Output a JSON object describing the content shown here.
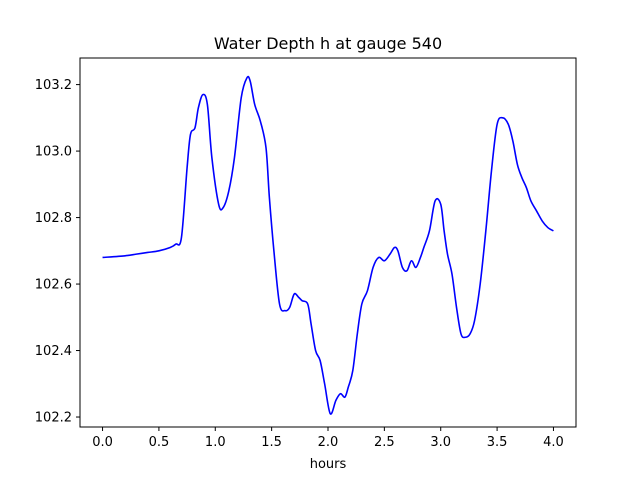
{
  "chart_data": {
    "type": "line",
    "title": "Water Depth h at gauge 540",
    "xlabel": "hours",
    "ylabel": "",
    "xlim": [
      -0.2,
      4.2
    ],
    "ylim": [
      102.17,
      103.28
    ],
    "grid": false,
    "line_color": "#0000ff",
    "x_ticks": [
      0.0,
      0.5,
      1.0,
      1.5,
      2.0,
      2.5,
      3.0,
      3.5,
      4.0
    ],
    "x_tick_labels": [
      "0.0",
      "0.5",
      "1.0",
      "1.5",
      "2.0",
      "2.5",
      "3.0",
      "3.5",
      "4.0"
    ],
    "y_ticks": [
      102.2,
      102.4,
      102.6,
      102.8,
      103.0,
      103.2
    ],
    "y_tick_labels": [
      "102.2",
      "102.4",
      "102.6",
      "102.8",
      "103.0",
      "103.2"
    ],
    "series": [
      {
        "x": [
          0.0,
          0.2,
          0.3,
          0.4,
          0.5,
          0.6,
          0.65,
          0.7,
          0.75,
          0.78,
          0.82,
          0.85,
          0.89,
          0.93,
          0.97,
          1.03,
          1.07,
          1.12,
          1.17,
          1.23,
          1.28,
          1.31,
          1.35,
          1.4,
          1.45,
          1.48,
          1.52,
          1.57,
          1.62,
          1.66,
          1.7,
          1.74,
          1.77,
          1.82,
          1.85,
          1.89,
          1.93,
          1.97,
          2.02,
          2.07,
          2.11,
          2.15,
          2.18,
          2.22,
          2.26,
          2.3,
          2.35,
          2.4,
          2.45,
          2.5,
          2.55,
          2.59,
          2.62,
          2.66,
          2.7,
          2.74,
          2.78,
          2.82,
          2.85,
          2.9,
          2.95,
          3.0,
          3.03,
          3.06,
          3.1,
          3.14,
          3.18,
          3.22,
          3.26,
          3.3,
          3.35,
          3.4,
          3.45,
          3.5,
          3.55,
          3.6,
          3.64,
          3.68,
          3.72,
          3.76,
          3.8,
          3.85,
          3.9,
          3.95,
          4.0
        ],
        "y": [
          102.68,
          102.685,
          102.69,
          102.695,
          102.7,
          102.71,
          102.72,
          102.74,
          102.95,
          103.05,
          103.07,
          103.13,
          103.17,
          103.14,
          102.98,
          102.84,
          102.83,
          102.88,
          102.98,
          103.16,
          103.22,
          103.21,
          103.14,
          103.09,
          103.01,
          102.86,
          102.7,
          102.54,
          102.52,
          102.53,
          102.57,
          102.56,
          102.55,
          102.54,
          102.48,
          102.4,
          102.37,
          102.3,
          102.21,
          102.25,
          102.27,
          102.26,
          102.29,
          102.34,
          102.45,
          102.54,
          102.58,
          102.65,
          102.68,
          102.67,
          102.69,
          102.71,
          102.7,
          102.65,
          102.64,
          102.67,
          102.65,
          102.68,
          102.71,
          102.76,
          102.85,
          102.84,
          102.76,
          102.69,
          102.63,
          102.53,
          102.45,
          102.44,
          102.45,
          102.49,
          102.6,
          102.76,
          102.94,
          103.08,
          103.1,
          103.08,
          103.03,
          102.96,
          102.92,
          102.89,
          102.85,
          102.82,
          102.79,
          102.77,
          102.76
        ]
      }
    ]
  }
}
